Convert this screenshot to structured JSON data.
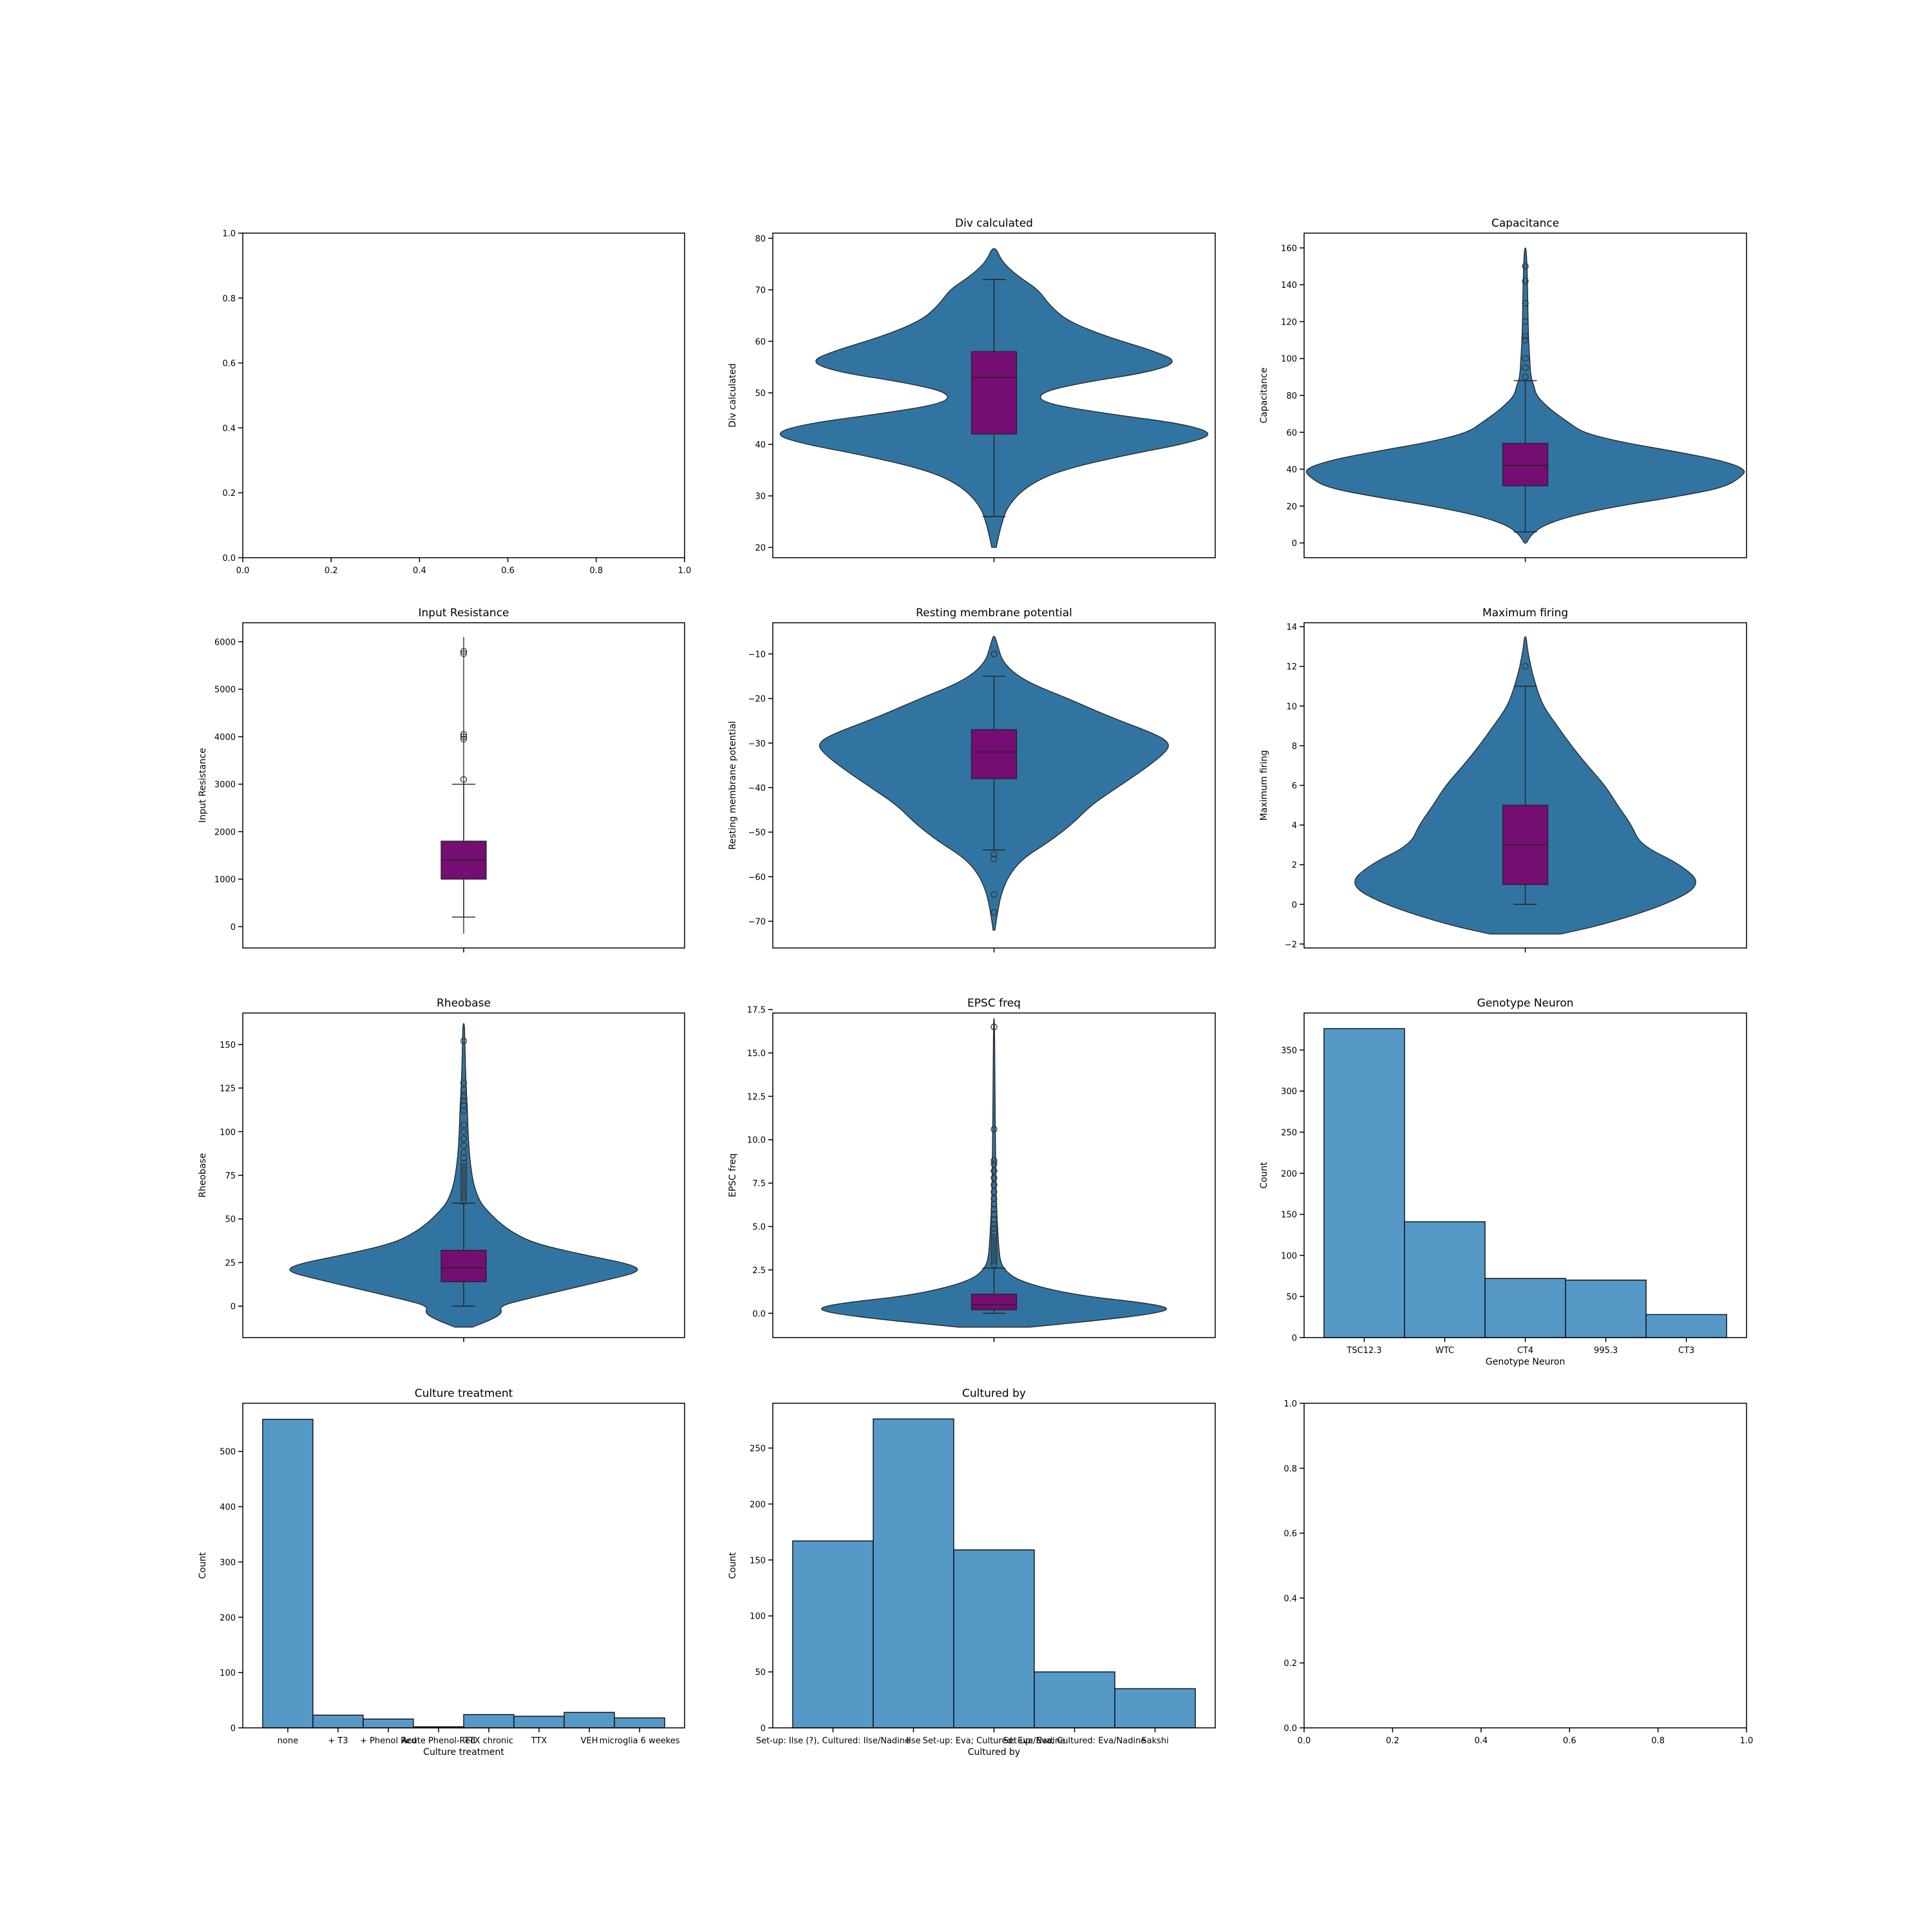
{
  "colors": {
    "violin": "#3274a1",
    "box": "#750e72",
    "bar": "#5698c6",
    "edge": "#1a1a1a"
  },
  "chart_data": [
    {
      "type": "empty",
      "title": "",
      "xlim": [
        0,
        1
      ],
      "ylim": [
        0,
        1
      ],
      "xticks": [
        "0.0",
        "0.2",
        "0.4",
        "0.6",
        "0.8",
        "1.0"
      ],
      "yticks": [
        "0.0",
        "0.2",
        "0.4",
        "0.6",
        "0.8",
        "1.0"
      ]
    },
    {
      "type": "violin",
      "title": "Div calculated",
      "ylabel": "Div calculated",
      "ylim": [
        18,
        81
      ],
      "yticks": [
        20,
        30,
        40,
        50,
        60,
        70,
        80
      ],
      "box": {
        "q1": 42,
        "median": 53,
        "q3": 58,
        "whisker_low": 26,
        "whisker_high": 72
      },
      "outliers": [],
      "density": [
        [
          20,
          0.01
        ],
        [
          24,
          0.03
        ],
        [
          28,
          0.06
        ],
        [
          32,
          0.15
        ],
        [
          35,
          0.3
        ],
        [
          38,
          0.6
        ],
        [
          40,
          0.85
        ],
        [
          42,
          1.0
        ],
        [
          44,
          0.85
        ],
        [
          46,
          0.5
        ],
        [
          48,
          0.22
        ],
        [
          50,
          0.2
        ],
        [
          52,
          0.4
        ],
        [
          54,
          0.7
        ],
        [
          56,
          0.83
        ],
        [
          58,
          0.73
        ],
        [
          61,
          0.5
        ],
        [
          64,
          0.33
        ],
        [
          67,
          0.25
        ],
        [
          70,
          0.2
        ],
        [
          72,
          0.13
        ],
        [
          74,
          0.07
        ],
        [
          76,
          0.03
        ],
        [
          78,
          0.01
        ]
      ]
    },
    {
      "type": "violin",
      "title": "Capacitance",
      "ylabel": "Capacitance",
      "ylim": [
        -8,
        168
      ],
      "yticks": [
        0,
        20,
        40,
        60,
        80,
        100,
        120,
        140,
        160
      ],
      "box": {
        "q1": 31,
        "median": 42,
        "q3": 54,
        "whisker_low": 6,
        "whisker_high": 88
      },
      "outliers": [
        90,
        95,
        100,
        110,
        112,
        120,
        130,
        142,
        150
      ],
      "density": [
        [
          0,
          0.005
        ],
        [
          5,
          0.03
        ],
        [
          10,
          0.09
        ],
        [
          15,
          0.22
        ],
        [
          20,
          0.42
        ],
        [
          25,
          0.68
        ],
        [
          30,
          0.9
        ],
        [
          36,
          0.98
        ],
        [
          40,
          1.0
        ],
        [
          45,
          0.88
        ],
        [
          50,
          0.66
        ],
        [
          55,
          0.42
        ],
        [
          60,
          0.26
        ],
        [
          65,
          0.2
        ],
        [
          70,
          0.14
        ],
        [
          75,
          0.09
        ],
        [
          80,
          0.05
        ],
        [
          85,
          0.04
        ],
        [
          90,
          0.025
        ],
        [
          100,
          0.02
        ],
        [
          110,
          0.015
        ],
        [
          125,
          0.012
        ],
        [
          140,
          0.01
        ],
        [
          160,
          0.005
        ]
      ]
    },
    {
      "type": "violin",
      "title": "Input Resistance",
      "ylabel": "Input Resistance",
      "ylim": [
        -450,
        6400
      ],
      "yticks": [
        0,
        1000,
        2000,
        3000,
        4000,
        5000,
        6000
      ],
      "box": {
        "q1": 1000,
        "median": 1400,
        "q3": 1800,
        "whisker_low": 200,
        "whisker_high": 3000
      },
      "outliers": [
        3100,
        3950,
        4000,
        4050,
        5750,
        5800
      ],
      "density": [
        [
          -150,
          0.01
        ],
        [
          100,
          0.05
        ],
        [
          300,
          0.15
        ],
        [
          500,
          0.32
        ],
        [
          700,
          0.55
        ],
        [
          900,
          0.82
        ],
        [
          1100,
          1.0
        ],
        [
          1300,
          0.9
        ],
        [
          1500,
          0.73
        ],
        [
          1700,
          0.6
        ],
        [
          1900,
          0.55
        ],
        [
          2100,
          0.3
        ],
        [
          2300,
          0.17
        ],
        [
          2500,
          0.11
        ],
        [
          2700,
          0.09
        ],
        [
          2900,
          0.09
        ],
        [
          3100,
          0.05
        ],
        [
          3300,
          0.025
        ],
        [
          3600,
          0.015
        ],
        [
          4000,
          0.015
        ],
        [
          4400,
          0.01
        ],
        [
          5000,
          0.008
        ],
        [
          5800,
          0.007
        ],
        [
          6100,
          0.005
        ]
      ]
    },
    {
      "type": "violin",
      "title": "Resting membrane potential",
      "ylabel": "Resting membrane potential",
      "ylim": [
        -76,
        -3
      ],
      "yticks": [
        -70,
        -60,
        -50,
        -40,
        -30,
        -20,
        -10
      ],
      "box": {
        "q1": -38,
        "median": -32,
        "q3": -27,
        "whisker_low": -54,
        "whisker_high": -15
      },
      "outliers": [
        -10,
        -55,
        -56,
        -64,
        -68
      ],
      "density": [
        [
          -72,
          0.005
        ],
        [
          -68,
          0.02
        ],
        [
          -64,
          0.04
        ],
        [
          -60,
          0.08
        ],
        [
          -56,
          0.16
        ],
        [
          -52,
          0.32
        ],
        [
          -48,
          0.45
        ],
        [
          -44,
          0.55
        ],
        [
          -40,
          0.7
        ],
        [
          -36,
          0.85
        ],
        [
          -32,
          0.98
        ],
        [
          -30,
          1.0
        ],
        [
          -28,
          0.92
        ],
        [
          -24,
          0.65
        ],
        [
          -20,
          0.42
        ],
        [
          -16,
          0.17
        ],
        [
          -12,
          0.05
        ],
        [
          -8,
          0.02
        ],
        [
          -6,
          0.005
        ]
      ]
    },
    {
      "type": "violin",
      "title": "Maximum firing",
      "ylabel": "Maximum firing",
      "ylim": [
        -2.2,
        14.2
      ],
      "yticks": [
        -2,
        0,
        2,
        4,
        6,
        8,
        10,
        12,
        14
      ],
      "box": {
        "q1": 1,
        "median": 3,
        "q3": 5,
        "whisker_low": 0,
        "whisker_high": 11
      },
      "outliers": [
        12
      ],
      "density": [
        [
          -1.5,
          0.2
        ],
        [
          -1,
          0.45
        ],
        [
          0,
          0.8
        ],
        [
          1,
          1.0
        ],
        [
          2,
          0.88
        ],
        [
          3,
          0.65
        ],
        [
          4,
          0.6
        ],
        [
          5,
          0.52
        ],
        [
          6,
          0.45
        ],
        [
          7,
          0.35
        ],
        [
          8,
          0.26
        ],
        [
          9,
          0.18
        ],
        [
          10,
          0.1
        ],
        [
          11,
          0.06
        ],
        [
          12,
          0.03
        ],
        [
          13,
          0.01
        ],
        [
          13.5,
          0.005
        ]
      ]
    },
    {
      "type": "violin",
      "title": "Rheobase",
      "ylabel": "Rheobase",
      "ylim": [
        -18,
        168
      ],
      "yticks": [
        0,
        25,
        50,
        75,
        100,
        125,
        150
      ],
      "box": {
        "q1": 14,
        "median": 22,
        "q3": 32,
        "whisker_low": 0,
        "whisker_high": 59
      },
      "outliers": [
        60,
        62,
        64,
        66,
        68,
        70,
        72,
        74,
        76,
        78,
        80,
        82,
        85,
        88,
        92,
        96,
        100,
        104,
        112,
        115,
        118,
        120,
        124,
        128,
        152
      ],
      "density": [
        [
          -12,
          0.05
        ],
        [
          -8,
          0.15
        ],
        [
          -4,
          0.22
        ],
        [
          0,
          0.2
        ],
        [
          4,
          0.35
        ],
        [
          10,
          0.6
        ],
        [
          16,
          0.85
        ],
        [
          20,
          1.0
        ],
        [
          24,
          0.95
        ],
        [
          30,
          0.65
        ],
        [
          36,
          0.4
        ],
        [
          42,
          0.28
        ],
        [
          48,
          0.2
        ],
        [
          54,
          0.14
        ],
        [
          60,
          0.09
        ],
        [
          70,
          0.055
        ],
        [
          80,
          0.04
        ],
        [
          90,
          0.03
        ],
        [
          100,
          0.025
        ],
        [
          115,
          0.02
        ],
        [
          130,
          0.012
        ],
        [
          145,
          0.008
        ],
        [
          155,
          0.006
        ],
        [
          162,
          0.004
        ]
      ]
    },
    {
      "type": "violin",
      "title": "EPSC freq",
      "ylabel": "EPSC freq",
      "ylim": [
        -1.4,
        17.3
      ],
      "yticks": [
        0.0,
        2.5,
        5.0,
        7.5,
        10.0,
        12.5,
        15.0,
        17.5
      ],
      "box": {
        "q1": 0.2,
        "median": 0.5,
        "q3": 1.1,
        "whisker_low": 0,
        "whisker_high": 2.6
      },
      "outliers": [
        2.8,
        3.0,
        3.2,
        3.4,
        3.6,
        3.8,
        4.0,
        4.2,
        4.4,
        4.6,
        4.9,
        5.1,
        5.4,
        5.7,
        6.0,
        6.3,
        6.6,
        7.0,
        7.4,
        7.8,
        8.2,
        8.6,
        8.8,
        10.6,
        16.5
      ],
      "density": [
        [
          -0.8,
          0.2
        ],
        [
          -0.4,
          0.6
        ],
        [
          0,
          0.92
        ],
        [
          0.3,
          1.0
        ],
        [
          0.6,
          0.85
        ],
        [
          1.0,
          0.5
        ],
        [
          1.5,
          0.26
        ],
        [
          2.0,
          0.12
        ],
        [
          2.5,
          0.06
        ],
        [
          3.0,
          0.035
        ],
        [
          4.0,
          0.025
        ],
        [
          5.0,
          0.02
        ],
        [
          6.0,
          0.015
        ],
        [
          8.0,
          0.01
        ],
        [
          10.0,
          0.008
        ],
        [
          13.0,
          0.005
        ],
        [
          17.0,
          0.003
        ]
      ]
    },
    {
      "type": "bar",
      "title": "Genotype Neuron",
      "xlabel": "Genotype Neuron",
      "ylabel": "Count",
      "categories": [
        "TSC12.3",
        "WTC",
        "CT4",
        "995.3",
        "CT3"
      ],
      "values": [
        376,
        141,
        72,
        70,
        28
      ],
      "ylim": [
        0,
        395
      ],
      "yticks": [
        0,
        50,
        100,
        150,
        200,
        250,
        300,
        350
      ]
    },
    {
      "type": "bar",
      "title": "Culture treatment",
      "xlabel": "Culture treatment",
      "ylabel": "Count",
      "categories": [
        "none",
        "+ T3",
        "+ Phenol Red",
        "- Phenol Red",
        "TTX chronic",
        "TTX",
        "VEH",
        "microglia 6 weekes"
      ],
      "tick_labels": [
        "none",
        "+ T3",
        "+ Phenol Red",
        "Acute Phenol-Red",
        "TTX chronic",
        "TTX",
        "VEH",
        "microglia 6 weekes"
      ],
      "values": [
        558,
        23,
        16,
        2,
        24,
        21,
        28,
        18
      ],
      "ylim": [
        0,
        587
      ],
      "yticks": [
        0,
        100,
        200,
        300,
        400,
        500
      ]
    },
    {
      "type": "bar",
      "title": "Cultured by",
      "xlabel": "Cultured by",
      "ylabel": "Count",
      "categories": [
        "Set-up: Ilse (?), Cultured: Ilse/Nadine",
        "Eva",
        "Set-up: Eva; Cultured: Eva/Nadine",
        "Set-up: Eva; Cultured: Eva/Nadine",
        "Sakshi"
      ],
      "tick_labels": [
        "Set-up: Ilse (?), Cultured: Ilse/Nadine",
        "Ilse",
        "Set-up: Eva; Cultured: Eva/Nadine",
        "Set-up: Eva; Cultured: Eva/Nadine",
        "Sakshi"
      ],
      "values": [
        167,
        276,
        159,
        50,
        35
      ],
      "ylim": [
        0,
        290
      ],
      "yticks": [
        0,
        50,
        100,
        150,
        200,
        250
      ]
    },
    {
      "type": "empty",
      "title": "",
      "xlim": [
        0,
        1
      ],
      "ylim": [
        0,
        1
      ],
      "xticks": [
        "0.0",
        "0.2",
        "0.4",
        "0.6",
        "0.8",
        "1.0"
      ],
      "yticks": [
        "0.0",
        "0.2",
        "0.4",
        "0.6",
        "0.8",
        "1.0"
      ]
    }
  ]
}
